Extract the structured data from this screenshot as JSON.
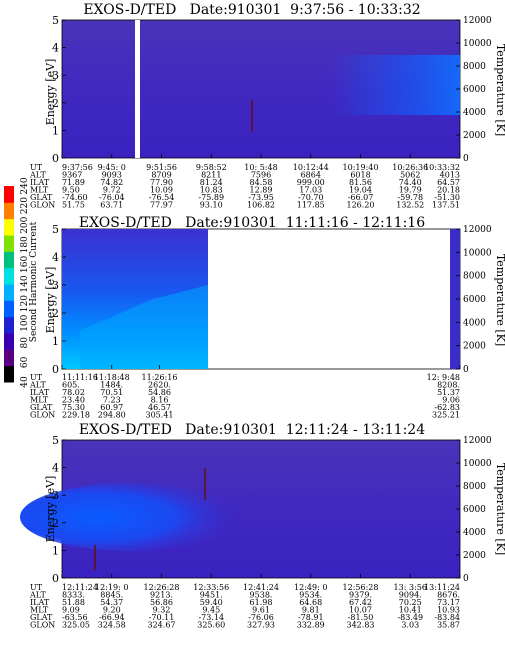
{
  "chart_data": [
    {
      "type": "heatmap",
      "title": "EXOS-D/TED   Date:910301  9:37:56 - 10:33:32",
      "ylabel": "Energy [eV]",
      "ylabel_right": "Temperature [K]",
      "ylim": [
        0,
        5
      ],
      "y_ticks": [
        "0",
        "1",
        "2",
        "3",
        "4",
        "5"
      ],
      "ylim_right": [
        0,
        12000
      ],
      "y_ticks_right": [
        "0",
        "2000",
        "4000",
        "6000",
        "8000",
        "10000",
        "12000"
      ],
      "data_extent": 1.0,
      "ephemeris": {
        "labels": [
          "UT",
          "ALT",
          "ILAT",
          "MLT",
          "GLAT",
          "GLON"
        ],
        "columns": [
          [
            "9:37:56",
            "9367",
            "71.89",
            "9.50",
            "-74.60",
            "51.75"
          ],
          [
            "9:45: 0",
            "9093",
            "74.82",
            "9.72",
            "-76.04",
            "63.71"
          ],
          [
            "9:51:56",
            "8709",
            "77.90",
            "10.09",
            "-76.54",
            "77.97"
          ],
          [
            "9:58:52",
            "8211",
            "81.24",
            "10.83",
            "-75.89",
            "93.10"
          ],
          [
            "10: 5:48",
            "7596",
            "84.58",
            "12.89",
            "-73.95",
            "106.82"
          ],
          [
            "10:12:44",
            "6864",
            "999.00",
            "17.03",
            "-70.70",
            "117.85"
          ],
          [
            "10:19:40",
            "6018",
            "81.56",
            "19.04",
            "-66.07",
            "126.20"
          ],
          [
            "10:26:36",
            "5062",
            "74.40",
            "19.79",
            "-59.78",
            "132.52"
          ],
          [
            "10:33:32",
            "4013",
            "64.57",
            "20.18",
            "-51.30",
            "137.51"
          ]
        ]
      }
    },
    {
      "type": "heatmap",
      "title": "EXOS-D/TED   Date:910301  11:11:16 - 12:11:16",
      "ylabel": "Energy [eV]",
      "ylabel_right": "Temperature [K]",
      "ylim": [
        0,
        5
      ],
      "y_ticks": [
        "0",
        "1",
        "2",
        "3",
        "4",
        "5"
      ],
      "ylim_right": [
        0,
        12000
      ],
      "y_ticks_right": [
        "0",
        "2000",
        "4000",
        "6000",
        "8000",
        "10000",
        "12000"
      ],
      "data_extent": 0.33,
      "ephemeris": {
        "labels": [
          "UT",
          "ALT",
          "ILAT",
          "MLT",
          "GLAT",
          "GLON"
        ],
        "columns": [
          [
            "11:11:16",
            "605.",
            "78.02",
            "23.40",
            "75.30",
            "229.18"
          ],
          [
            "11:18:48",
            "1484.",
            "70.51",
            "7.23",
            "60.97",
            "294.80"
          ],
          [
            "11:26:16",
            "2620.",
            "54.86",
            "8.16",
            "46.57",
            "305.41"
          ],
          [
            "12: 9:48",
            "8208.",
            "51.37",
            "9.06",
            "-62.83",
            "325.21"
          ]
        ]
      }
    },
    {
      "type": "heatmap",
      "title": "EXOS-D/TED   Date:910301  12:11:24 - 13:11:24",
      "ylabel": "Energy [eV]",
      "ylabel_right": "Temperature [K]",
      "ylim": [
        0,
        5
      ],
      "y_ticks": [
        "0",
        "1",
        "2",
        "3",
        "4",
        "5"
      ],
      "ylim_right": [
        0,
        12000
      ],
      "y_ticks_right": [
        "0",
        "2000",
        "4000",
        "6000",
        "8000",
        "10000",
        "12000"
      ],
      "data_extent": 1.0,
      "ephemeris": {
        "labels": [
          "UT",
          "ALT",
          "ILAT",
          "MLT",
          "GLAT",
          "GLON"
        ],
        "columns": [
          [
            "12:11:24",
            "8333.",
            "51.88",
            "9.09",
            "-63.56",
            "325.05"
          ],
          [
            "12:19: 0",
            "8845.",
            "54.37",
            "9.20",
            "-66.94",
            "324.58"
          ],
          [
            "12:26:28",
            "9213.",
            "56.86",
            "9.32",
            "-70.11",
            "324.67"
          ],
          [
            "12:33:56",
            "9451.",
            "59.40",
            "9.45",
            "-73.14",
            "325.60"
          ],
          [
            "12:41:24",
            "9538.",
            "61.98",
            "9.61",
            "-76.06",
            "327.93"
          ],
          [
            "12:49: 0",
            "9534.",
            "64.68",
            "9.81",
            "-78.91",
            "332.89"
          ],
          [
            "12:56:28",
            "9379.",
            "67.42",
            "10.07",
            "-81.50",
            "342.83"
          ],
          [
            "13: 3:56",
            "9094.",
            "70.25",
            "10.41",
            "-83.49",
            "3.03"
          ],
          [
            "13:11:24",
            "8676.",
            "73.17",
            "10.93",
            "-83.84",
            "35.87"
          ]
        ]
      }
    }
  ],
  "colorbar": {
    "label": "Second Harmonic Current",
    "ticks": [
      "40",
      "60",
      "80",
      "100",
      "120",
      "140",
      "160",
      "180",
      "200",
      "220",
      "240"
    ],
    "colors": [
      "#000000",
      "#5a0080",
      "#3a00b0",
      "#2020d0",
      "#0060ff",
      "#00b0ff",
      "#00e0e0",
      "#00c080",
      "#80e000",
      "#ffff00",
      "#ff8000",
      "#ff0000"
    ]
  }
}
